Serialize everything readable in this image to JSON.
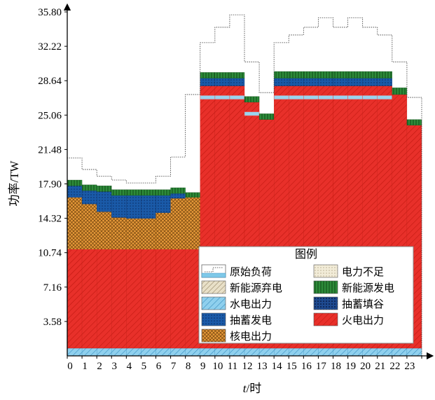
{
  "chart_data": {
    "type": "bar",
    "stacked": true,
    "xlabel_italic": "t",
    "xlabel_rest": "/时",
    "ylabel": "功率/TW",
    "ylim": [
      0,
      35.8
    ],
    "yticks": [
      "3.58",
      "7.16",
      "10.74",
      "14.32",
      "17.90",
      "21.48",
      "25.06",
      "28.64",
      "32.22",
      "35.80"
    ],
    "ytick_values": [
      3.58,
      7.16,
      10.74,
      14.32,
      17.9,
      21.48,
      25.06,
      28.64,
      32.22,
      35.8
    ],
    "categories": [
      "0",
      "1",
      "2",
      "3",
      "4",
      "5",
      "6",
      "7",
      "8",
      "9",
      "10",
      "11",
      "12",
      "13",
      "14",
      "15",
      "16",
      "17",
      "18",
      "19",
      "20",
      "21",
      "22",
      "23"
    ],
    "series": [
      {
        "name": "水电出力",
        "key": "hydro",
        "color": "#7ec8e8",
        "values": [
          0.8,
          0.8,
          0.8,
          0.8,
          0.8,
          0.8,
          0.8,
          0.8,
          0.8,
          0.8,
          0.8,
          0.8,
          0.8,
          0.8,
          0.8,
          0.8,
          0.8,
          0.8,
          0.8,
          0.8,
          0.8,
          0.8,
          0.8,
          0.8
        ]
      },
      {
        "name": "火电出力",
        "key": "thermal",
        "color": "#e8302a",
        "values": [
          10.3,
          10.3,
          10.3,
          10.3,
          10.3,
          10.3,
          10.3,
          10.3,
          10.3,
          27.3,
          27.3,
          27.3,
          25.6,
          23.8,
          27.3,
          27.3,
          27.3,
          27.3,
          27.3,
          27.3,
          27.3,
          27.3,
          26.4,
          23.2
        ]
      },
      {
        "name": "核电出力",
        "key": "nuclear",
        "color": "#e89030",
        "values": [
          5.4,
          4.7,
          3.9,
          3.3,
          3.2,
          3.2,
          3.8,
          5.3,
          5.4,
          0,
          0,
          0,
          0,
          0,
          0,
          0,
          0,
          0,
          0,
          0,
          0,
          0,
          0,
          0
        ]
      },
      {
        "name": "抽蓄发电",
        "key": "pumped_gen",
        "color": "#1a5aa8",
        "values": [
          1.2,
          1.4,
          2.1,
          2.3,
          2.4,
          2.4,
          1.8,
          0.5,
          0,
          0.8,
          0.8,
          0.8,
          0,
          0,
          0.8,
          0.8,
          0.8,
          0.8,
          0.8,
          0.8,
          0.8,
          0.8,
          0,
          0
        ]
      },
      {
        "name": "新能源发电",
        "key": "renewable",
        "color": "#2e8b3a",
        "values": [
          0.6,
          0.6,
          0.6,
          0.6,
          0.6,
          0.6,
          0.6,
          0.6,
          0.5,
          0.6,
          0.6,
          0.6,
          0.6,
          0.6,
          0.7,
          0.7,
          0.7,
          0.7,
          0.7,
          0.7,
          0.7,
          0.7,
          0.7,
          0.6
        ]
      }
    ],
    "curtailment": {
      "name": "新能源弃电",
      "values": [
        0,
        0,
        0,
        0,
        0,
        0,
        0,
        0,
        0,
        0.4,
        0.4,
        0.4,
        0.4,
        0,
        0.4,
        0.4,
        0.4,
        0.4,
        0.4,
        0.4,
        0.4,
        0.4,
        0,
        0
      ]
    },
    "pumped_fill": {
      "name": "抽蓄填谷",
      "values": [
        0,
        0,
        0,
        0,
        0,
        0,
        0,
        0,
        0,
        0,
        0,
        0,
        0,
        0,
        0,
        0,
        0,
        0,
        0,
        0,
        0,
        0,
        0,
        0
      ]
    },
    "shortage": {
      "name": "电力不足",
      "values": [
        0,
        0,
        0,
        0,
        0,
        0,
        0,
        0,
        0,
        0,
        0,
        0,
        0,
        0,
        0,
        0,
        0,
        0,
        0,
        0,
        0,
        0,
        0,
        0
      ]
    },
    "original_load": {
      "name": "原始负荷",
      "values": [
        20.6,
        19.4,
        18.7,
        18.3,
        18.0,
        18.0,
        18.7,
        20.7,
        27.2,
        32.6,
        34.2,
        35.5,
        30.6,
        27.4,
        32.6,
        33.4,
        34.2,
        35.2,
        34.2,
        35.2,
        34.2,
        33.4,
        30.6,
        26.9
      ]
    },
    "legend": {
      "title": "图例",
      "placement": "bottom-right",
      "items": [
        {
          "label": "原始负荷",
          "key": "load"
        },
        {
          "label": "电力不足",
          "key": "shortage"
        },
        {
          "label": "新能源弃电",
          "key": "curtail"
        },
        {
          "label": "新能源发电",
          "key": "renewable"
        },
        {
          "label": "水电出力",
          "key": "hydro"
        },
        {
          "label": "抽蓄填谷",
          "key": "pumped_fill"
        },
        {
          "label": "抽蓄发电",
          "key": "pumped_gen"
        },
        {
          "label": "火电出力",
          "key": "thermal"
        },
        {
          "label": "核电出力",
          "key": "nuclear"
        }
      ]
    },
    "grid": false
  }
}
